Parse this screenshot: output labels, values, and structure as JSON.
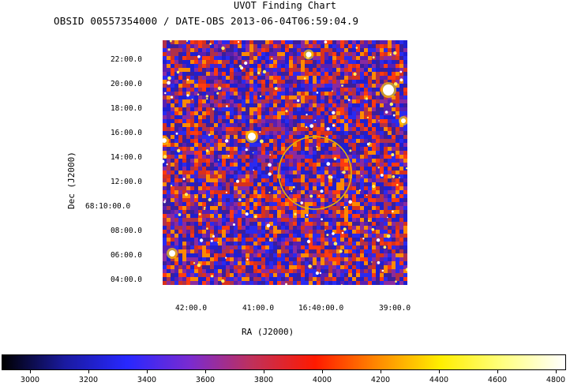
{
  "title": "UVOT Finding Chart",
  "subtitle": "OBSID 00557354000 / DATE-OBS 2013-06-04T06:59:04.9",
  "dec_axis": {
    "label": "Dec (J2000)",
    "ticks": [
      "22:00.0",
      "20:00.0",
      "18:00.0",
      "16:00.0",
      "14:00.0",
      "12:00.0",
      "68:10:00.0",
      "08:00.0",
      "06:00.0",
      "04:00.0"
    ]
  },
  "ra_axis": {
    "label": "RA (J2000)",
    "ticks": [
      "42:00.0",
      "41:00.0",
      "16:40:00.0",
      "39:00.0"
    ]
  },
  "colorbar": {
    "ticks": [
      "3000",
      "3200",
      "3400",
      "3600",
      "3800",
      "4000",
      "4200",
      "4400",
      "4600",
      "4800"
    ],
    "colors": [
      "#000000",
      "#1a1aa0",
      "#2828ff",
      "#7a2bd0",
      "#c0305a",
      "#ff1a00",
      "#ff8a00",
      "#ffee00",
      "#ffff80",
      "#ffffff"
    ]
  },
  "target_circle_color": "#e6b400"
}
